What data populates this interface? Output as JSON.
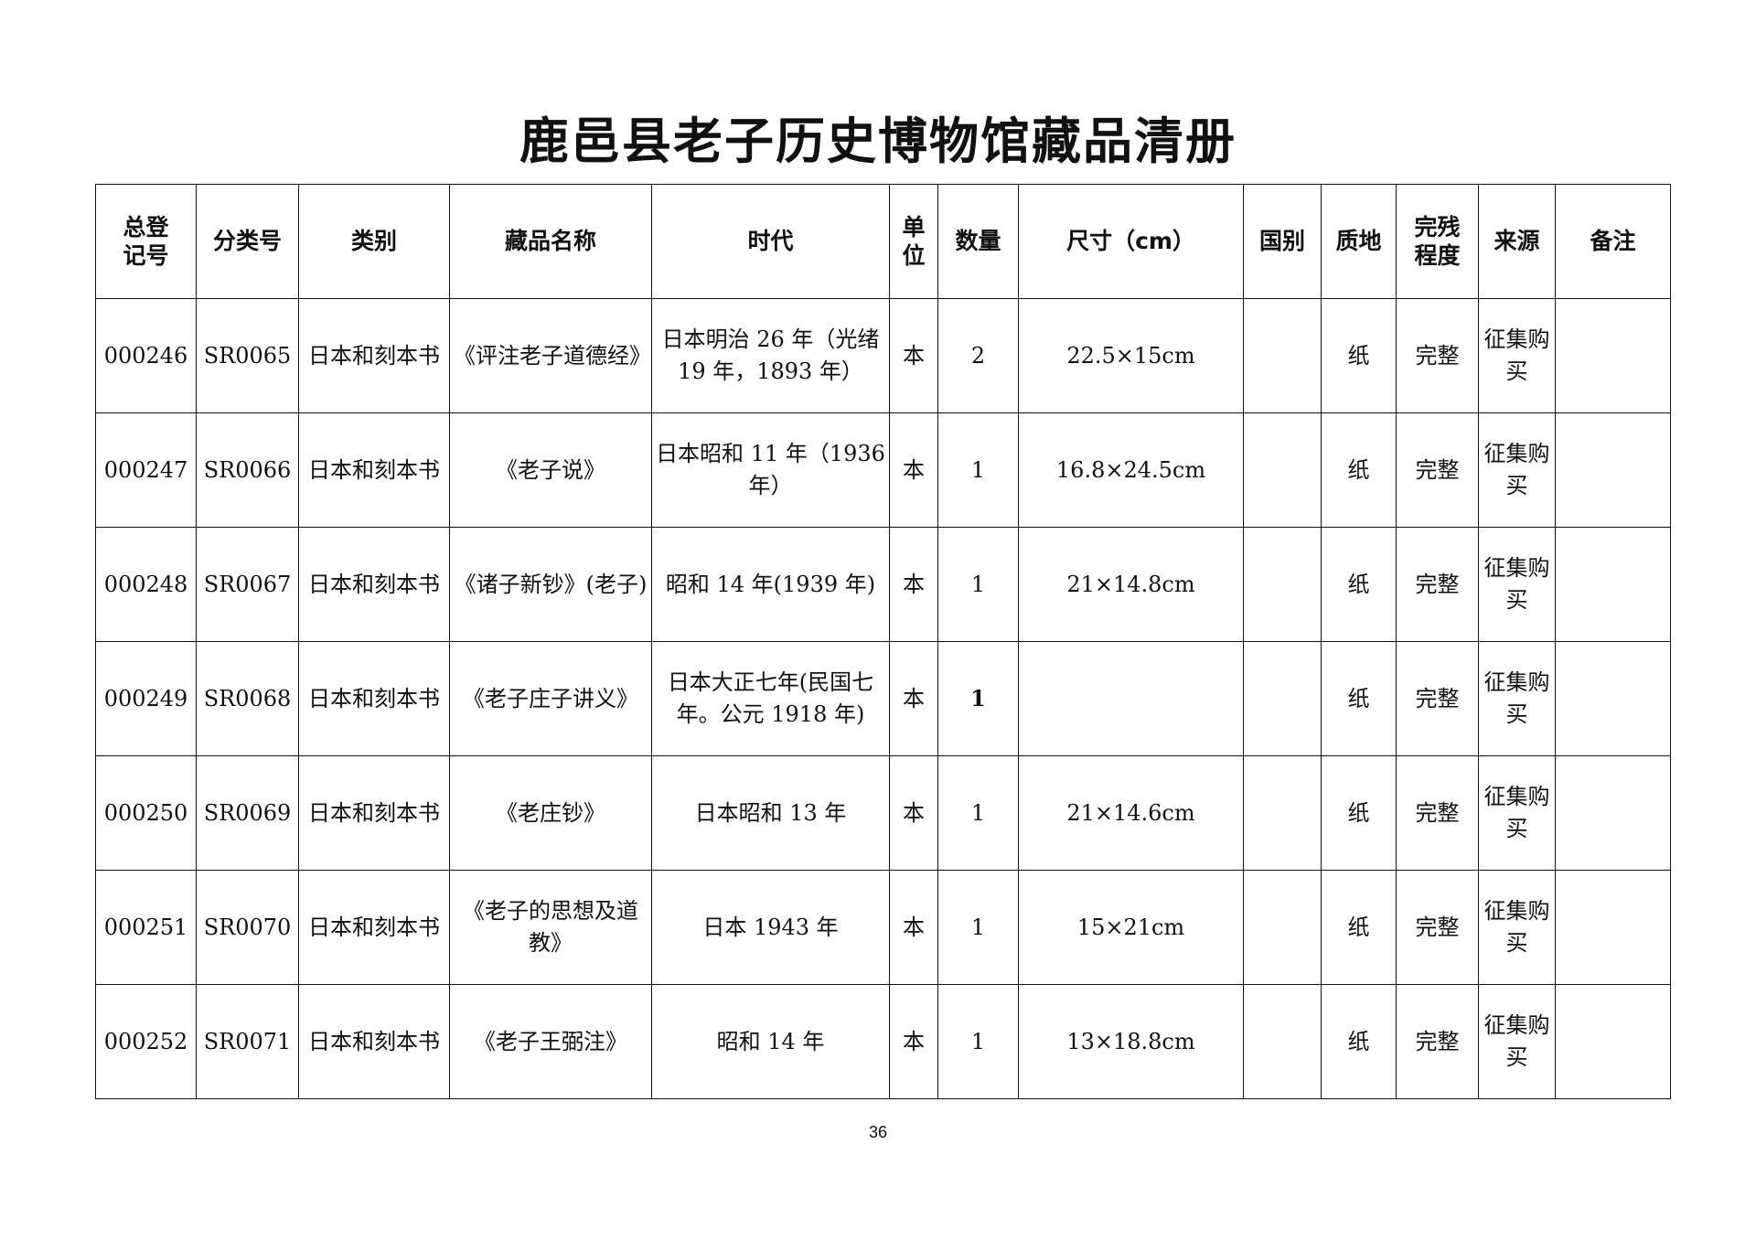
{
  "title": "鹿邑县老子历史博物馆藏品清册",
  "headers": {
    "reg_no": "总登\n记号",
    "class_no": "分类号",
    "category": "类别",
    "name": "藏品名称",
    "era": "时代",
    "unit": "单\n位",
    "quantity": "数量",
    "size": "尺寸（cm）",
    "country": "国别",
    "material": "质地",
    "condition": "完残\n程度",
    "source": "来源",
    "remarks": "备注"
  },
  "rows": [
    {
      "reg_no": "000246",
      "class_no": "SR0065",
      "category": "日本和刻本书",
      "name": "《评注老子道德经》",
      "era": "日本明治 26 年（光绪 19 年，1893 年）",
      "unit": "本",
      "quantity": "2",
      "size": "22.5×15cm",
      "country": "",
      "material": "纸",
      "condition": "完整",
      "source": "征集购买",
      "remarks": ""
    },
    {
      "reg_no": "000247",
      "class_no": "SR0066",
      "category": "日本和刻本书",
      "name": "《老子说》",
      "era": "日本昭和 11 年（1936 年）",
      "unit": "本",
      "quantity": "1",
      "size": "16.8×24.5cm",
      "country": "",
      "material": "纸",
      "condition": "完整",
      "source": "征集购买",
      "remarks": ""
    },
    {
      "reg_no": "000248",
      "class_no": "SR0067",
      "category": "日本和刻本书",
      "name": "《诸子新钞》(老子)",
      "era": "昭和 14 年(1939 年)",
      "unit": "本",
      "quantity": "1",
      "size": "21×14.8cm",
      "country": "",
      "material": "纸",
      "condition": "完整",
      "source": "征集购买",
      "remarks": ""
    },
    {
      "reg_no": "000249",
      "class_no": "SR0068",
      "category": "日本和刻本书",
      "name": "《老子庄子讲义》",
      "era": "日本大正七年(民国七年。公元 1918 年)",
      "unit": "本",
      "quantity": "1",
      "size": "",
      "country": "",
      "material": "纸",
      "condition": "完整",
      "source": "征集购买",
      "remarks": ""
    },
    {
      "reg_no": "000250",
      "class_no": "SR0069",
      "category": "日本和刻本书",
      "name": "《老庄钞》",
      "era": "日本昭和 13 年",
      "unit": "本",
      "quantity": "1",
      "size": "21×14.6cm",
      "country": "",
      "material": "纸",
      "condition": "完整",
      "source": "征集购买",
      "remarks": ""
    },
    {
      "reg_no": "000251",
      "class_no": "SR0070",
      "category": "日本和刻本书",
      "name": "《老子的思想及道教》",
      "era": "日本 1943 年",
      "unit": "本",
      "quantity": "1",
      "size": "15×21cm",
      "country": "",
      "material": "纸",
      "condition": "完整",
      "source": "征集购买",
      "remarks": ""
    },
    {
      "reg_no": "000252",
      "class_no": "SR0071",
      "category": "日本和刻本书",
      "name": "《老子王弼注》",
      "era": "昭和 14 年",
      "unit": "本",
      "quantity": "1",
      "size": "13×18.8cm",
      "country": "",
      "material": "纸",
      "condition": "完整",
      "source": "征集购买",
      "remarks": ""
    }
  ],
  "page_number": "36"
}
